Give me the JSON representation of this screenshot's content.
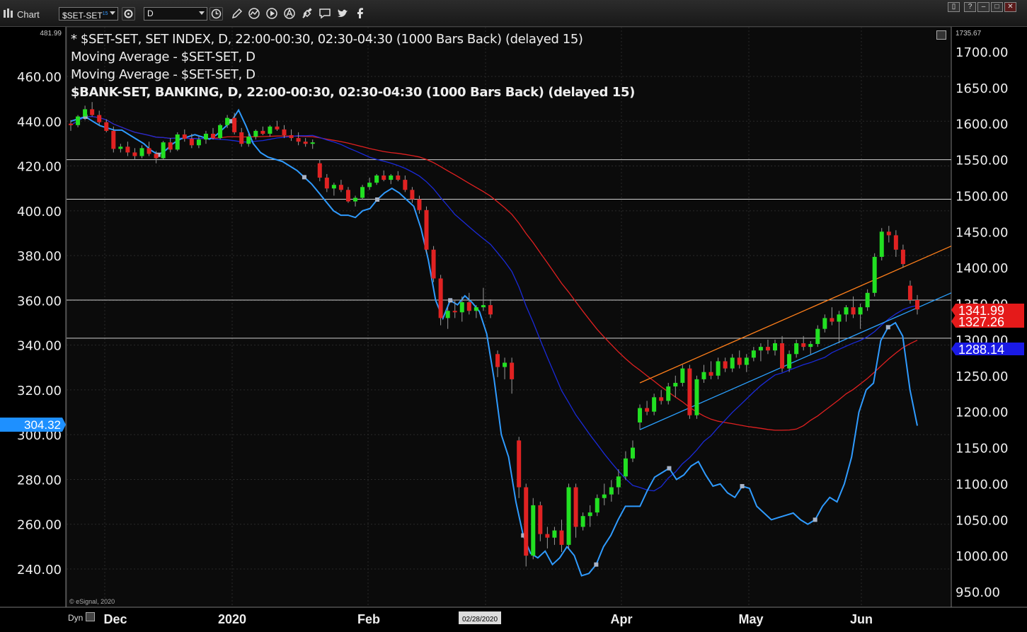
{
  "toolbar": {
    "app_title": "Chart",
    "symbol": "$SET-SET",
    "symbol_badge": "15",
    "interval": "D"
  },
  "legend": [
    "* $SET-SET, SET INDEX, D, 22:00-00:30, 02:30-04:30 (1000 Bars Back) (delayed 15)",
    "Moving Average - $SET-SET, D",
    "Moving Average - $SET-SET, D",
    "$BANK-SET, BANKING, D, 22:00-00:30, 02:30-04:30 (1000 Bars Back) (delayed 15)"
  ],
  "footer": {
    "dyn": "Dyn",
    "copyright": "© eSignal, 2020"
  },
  "chart_data": {
    "type": "candlestick",
    "left_axis": {
      "ticks": [
        "240.00",
        "260.00",
        "280.00",
        "300.00",
        "320.00",
        "340.00",
        "360.00",
        "380.00",
        "400.00",
        "420.00",
        "440.00",
        "460.00"
      ],
      "top_label": "481.99",
      "range": [
        230,
        482
      ]
    },
    "right_axis": {
      "ticks": [
        "950.00",
        "1000.00",
        "1050.00",
        "1100.00",
        "1150.00",
        "1200.00",
        "1250.00",
        "1300.00",
        "1350.00",
        "1400.00",
        "1450.00",
        "1500.00",
        "1550.00",
        "1600.00",
        "1650.00",
        "1700.00"
      ],
      "top_label": "1735.67",
      "range": [
        930,
        1736
      ]
    },
    "x_labels": [
      "Dec",
      "2020",
      "Feb",
      "02/28/2020",
      "Apr",
      "May",
      "Jun"
    ],
    "price_tags": [
      {
        "text": "304.32",
        "color": "#1e90ff",
        "axis": "left"
      },
      {
        "text": "1341.99",
        "color": "#e51a1a",
        "axis": "right"
      },
      {
        "text": "1327.26",
        "color": "#e51a1a",
        "axis": "right"
      },
      {
        "text": "1288.14",
        "color": "#1a1ae5",
        "axis": "right"
      }
    ],
    "horizontal_levels": [
      1550,
      1495,
      1355,
      1302
    ],
    "candles": [
      [
        1600,
        1605,
        1590,
        1598
      ],
      [
        1598,
        1612,
        1595,
        1610
      ],
      [
        1610,
        1625,
        1605,
        1620
      ],
      [
        1620,
        1630,
        1610,
        1612
      ],
      [
        1612,
        1618,
        1598,
        1602
      ],
      [
        1602,
        1606,
        1588,
        1590
      ],
      [
        1590,
        1596,
        1560,
        1565
      ],
      [
        1565,
        1572,
        1560,
        1568
      ],
      [
        1568,
        1575,
        1555,
        1560
      ],
      [
        1560,
        1566,
        1550,
        1555
      ],
      [
        1555,
        1570,
        1552,
        1566
      ],
      [
        1566,
        1575,
        1555,
        1558
      ],
      [
        1558,
        1562,
        1545,
        1552
      ],
      [
        1552,
        1576,
        1550,
        1574
      ],
      [
        1574,
        1580,
        1560,
        1564
      ],
      [
        1564,
        1588,
        1562,
        1585
      ],
      [
        1585,
        1592,
        1575,
        1579
      ],
      [
        1579,
        1586,
        1566,
        1570
      ],
      [
        1570,
        1582,
        1566,
        1578
      ],
      [
        1578,
        1590,
        1572,
        1586
      ],
      [
        1586,
        1594,
        1578,
        1580
      ],
      [
        1580,
        1600,
        1578,
        1598
      ],
      [
        1598,
        1612,
        1594,
        1608
      ],
      [
        1608,
        1615,
        1585,
        1588
      ],
      [
        1588,
        1594,
        1568,
        1572
      ],
      [
        1572,
        1586,
        1568,
        1582
      ],
      [
        1582,
        1592,
        1578,
        1590
      ],
      [
        1590,
        1596,
        1584,
        1586
      ],
      [
        1586,
        1598,
        1582,
        1596
      ],
      [
        1596,
        1604,
        1590,
        1592
      ],
      [
        1592,
        1598,
        1580,
        1584
      ],
      [
        1584,
        1592,
        1576,
        1580
      ],
      [
        1580,
        1588,
        1570,
        1575
      ],
      [
        1575,
        1580,
        1568,
        1572
      ],
      [
        1572,
        1578,
        1565,
        1574
      ],
      [
        1545,
        1550,
        1520,
        1525
      ],
      [
        1525,
        1530,
        1505,
        1510
      ],
      [
        1510,
        1518,
        1500,
        1515
      ],
      [
        1515,
        1522,
        1505,
        1508
      ],
      [
        1508,
        1512,
        1490,
        1492
      ],
      [
        1492,
        1500,
        1485,
        1497
      ],
      [
        1497,
        1515,
        1495,
        1512
      ],
      [
        1512,
        1525,
        1508,
        1518
      ],
      [
        1518,
        1530,
        1515,
        1528
      ],
      [
        1528,
        1535,
        1520,
        1522
      ],
      [
        1522,
        1530,
        1516,
        1528
      ],
      [
        1528,
        1534,
        1520,
        1522
      ],
      [
        1522,
        1528,
        1505,
        1508
      ],
      [
        1508,
        1512,
        1490,
        1495
      ],
      [
        1495,
        1500,
        1475,
        1480
      ],
      [
        1480,
        1485,
        1420,
        1425
      ],
      [
        1425,
        1430,
        1380,
        1385
      ],
      [
        1385,
        1390,
        1320,
        1330
      ],
      [
        1330,
        1345,
        1315,
        1340
      ],
      [
        1340,
        1355,
        1330,
        1338
      ],
      [
        1338,
        1360,
        1325,
        1352
      ],
      [
        1352,
        1365,
        1335,
        1340
      ],
      [
        1340,
        1348,
        1330,
        1345
      ],
      [
        1345,
        1372,
        1340,
        1348
      ],
      [
        1348,
        1356,
        1330,
        1335
      ],
      [
        1280,
        1285,
        1248,
        1262
      ],
      [
        1262,
        1275,
        1245,
        1268
      ],
      [
        1268,
        1275,
        1225,
        1245
      ],
      [
        1160,
        1165,
        1080,
        1095
      ],
      [
        1095,
        1100,
        985,
        1000
      ],
      [
        1000,
        1080,
        995,
        1070
      ],
      [
        1070,
        1075,
        1020,
        1030
      ],
      [
        1030,
        1040,
        1010,
        1025
      ],
      [
        1025,
        1040,
        1015,
        1035
      ],
      [
        1035,
        1050,
        1005,
        1015
      ],
      [
        1015,
        1100,
        1010,
        1095
      ],
      [
        1095,
        1100,
        1025,
        1040
      ],
      [
        1040,
        1060,
        1035,
        1055
      ],
      [
        1055,
        1070,
        1040,
        1060
      ],
      [
        1060,
        1085,
        1055,
        1080
      ],
      [
        1080,
        1100,
        1070,
        1085
      ],
      [
        1085,
        1105,
        1075,
        1095
      ],
      [
        1095,
        1120,
        1085,
        1110
      ],
      [
        1110,
        1145,
        1105,
        1135
      ],
      [
        1135,
        1160,
        1130,
        1150
      ],
      [
        1185,
        1210,
        1175,
        1205
      ],
      [
        1205,
        1215,
        1195,
        1200
      ],
      [
        1200,
        1225,
        1195,
        1220
      ],
      [
        1220,
        1230,
        1210,
        1215
      ],
      [
        1215,
        1240,
        1210,
        1235
      ],
      [
        1235,
        1250,
        1220,
        1240
      ],
      [
        1240,
        1265,
        1235,
        1260
      ],
      [
        1260,
        1265,
        1190,
        1195
      ],
      [
        1195,
        1250,
        1190,
        1245
      ],
      [
        1245,
        1265,
        1240,
        1255
      ],
      [
        1255,
        1270,
        1245,
        1250
      ],
      [
        1250,
        1275,
        1245,
        1270
      ],
      [
        1270,
        1275,
        1255,
        1260
      ],
      [
        1260,
        1280,
        1255,
        1275
      ],
      [
        1275,
        1285,
        1260,
        1265
      ],
      [
        1265,
        1280,
        1255,
        1275
      ],
      [
        1275,
        1290,
        1270,
        1285
      ],
      [
        1285,
        1295,
        1270,
        1290
      ],
      [
        1290,
        1300,
        1280,
        1285
      ],
      [
        1285,
        1300,
        1278,
        1295
      ],
      [
        1295,
        1305,
        1255,
        1260
      ],
      [
        1260,
        1285,
        1255,
        1280
      ],
      [
        1280,
        1300,
        1275,
        1295
      ],
      [
        1295,
        1305,
        1285,
        1290
      ],
      [
        1290,
        1298,
        1280,
        1294
      ],
      [
        1294,
        1320,
        1290,
        1315
      ],
      [
        1315,
        1335,
        1310,
        1330
      ],
      [
        1330,
        1345,
        1320,
        1325
      ],
      [
        1325,
        1340,
        1295,
        1335
      ],
      [
        1335,
        1348,
        1325,
        1345
      ],
      [
        1345,
        1360,
        1330,
        1335
      ],
      [
        1335,
        1350,
        1315,
        1345
      ],
      [
        1345,
        1370,
        1340,
        1365
      ],
      [
        1365,
        1420,
        1360,
        1415
      ],
      [
        1415,
        1455,
        1410,
        1450
      ],
      [
        1450,
        1458,
        1435,
        1445
      ],
      [
        1445,
        1452,
        1415,
        1425
      ],
      [
        1425,
        1432,
        1400,
        1405
      ],
      [
        1375,
        1382,
        1350,
        1355
      ],
      [
        1355,
        1362,
        1335,
        1342
      ]
    ],
    "bank_line": [
      440,
      441,
      442,
      440,
      438,
      437,
      436,
      436,
      434,
      432,
      430,
      427,
      425,
      427,
      430,
      432,
      433,
      434,
      433,
      432,
      434,
      437,
      440,
      445,
      438,
      430,
      426,
      424,
      423,
      422,
      420,
      418,
      415,
      412,
      408,
      404,
      400,
      398,
      398,
      397,
      400,
      401,
      405,
      408,
      410,
      408,
      405,
      402,
      392,
      378,
      360,
      352,
      360,
      358,
      362,
      359,
      355,
      345,
      325,
      300,
      290,
      270,
      255,
      247,
      245,
      248,
      242,
      245,
      250,
      246,
      237,
      238,
      242,
      250,
      255,
      262,
      268,
      268,
      268,
      275,
      281,
      283,
      285,
      280,
      282,
      286,
      288,
      282,
      277,
      278,
      274,
      272,
      277,
      276,
      268,
      265,
      262,
      263,
      264,
      265,
      262,
      260,
      262,
      268,
      272,
      270,
      278,
      290,
      310,
      320,
      323,
      342,
      348,
      350,
      344,
      320,
      304
    ]
  }
}
